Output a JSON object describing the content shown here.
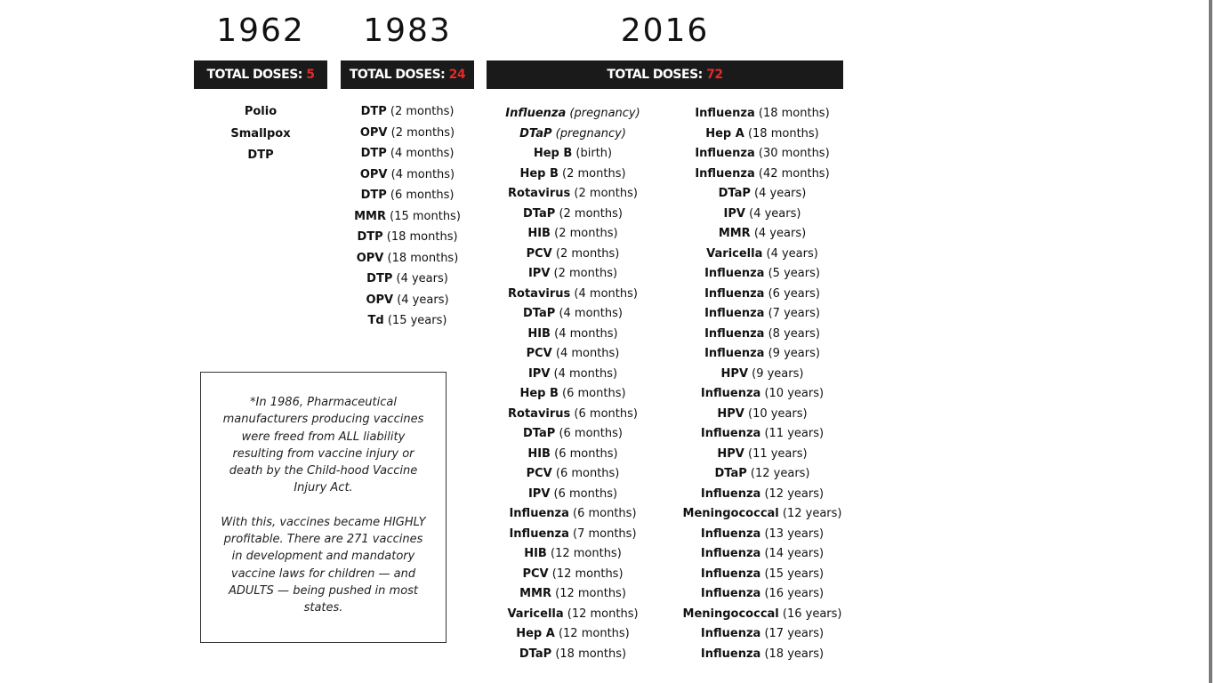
{
  "columns": {
    "c1962": {
      "year": "1962",
      "total_label": "TOTAL DOSES: ",
      "total_value": "5",
      "items": [
        {
          "name": "Polio",
          "detail": ""
        },
        {
          "name": "Smallpox",
          "detail": ""
        },
        {
          "name": "DTP",
          "detail": ""
        }
      ]
    },
    "c1983": {
      "year": "1983",
      "total_label": "TOTAL DOSES: ",
      "total_value": "24",
      "items": [
        {
          "name": "DTP",
          "detail": " (2 months)"
        },
        {
          "name": "OPV",
          "detail": " (2 months)"
        },
        {
          "name": "DTP",
          "detail": " (4 months)"
        },
        {
          "name": "OPV",
          "detail": " (4 months)"
        },
        {
          "name": "DTP",
          "detail": " (6 months)"
        },
        {
          "name": "MMR",
          "detail": " (15 months)"
        },
        {
          "name": "DTP",
          "detail": " (18 months)"
        },
        {
          "name": "OPV",
          "detail": " (18 months)"
        },
        {
          "name": "DTP",
          "detail": " (4 years)"
        },
        {
          "name": "OPV",
          "detail": " (4 years)"
        },
        {
          "name": "Td",
          "detail": " (15 years)"
        }
      ]
    },
    "c2016": {
      "year": "2016",
      "total_label": "TOTAL DOSES: ",
      "total_value": "72",
      "items_left": [
        {
          "name": "Influenza",
          "detail": " (pregnancy)",
          "italic": true
        },
        {
          "name": "DTaP",
          "detail": " (pregnancy)",
          "italic": true
        },
        {
          "name": "Hep B",
          "detail": " (birth)"
        },
        {
          "name": "Hep B",
          "detail": " (2 months)"
        },
        {
          "name": "Rotavirus",
          "detail": " (2 months)"
        },
        {
          "name": "DTaP",
          "detail": " (2 months)"
        },
        {
          "name": "HIB",
          "detail": " (2 months)"
        },
        {
          "name": "PCV",
          "detail": " (2 months)"
        },
        {
          "name": "IPV",
          "detail": " (2 months)"
        },
        {
          "name": "Rotavirus",
          "detail": " (4 months)"
        },
        {
          "name": "DTaP",
          "detail": " (4 months)"
        },
        {
          "name": "HIB",
          "detail": " (4 months)"
        },
        {
          "name": "PCV",
          "detail": " (4 months)"
        },
        {
          "name": "IPV",
          "detail": " (4 months)"
        },
        {
          "name": "Hep B",
          "detail": " (6 months)"
        },
        {
          "name": "Rotavirus",
          "detail": " (6 months)"
        },
        {
          "name": "DTaP",
          "detail": " (6 months)"
        },
        {
          "name": "HIB",
          "detail": " (6 months)"
        },
        {
          "name": "PCV",
          "detail": " (6 months)"
        },
        {
          "name": "IPV",
          "detail": " (6 months)"
        },
        {
          "name": "Influenza",
          "detail": " (6 months)"
        },
        {
          "name": "Influenza",
          "detail": " (7 months)"
        },
        {
          "name": "HIB",
          "detail": " (12 months)"
        },
        {
          "name": "PCV",
          "detail": " (12 months)"
        },
        {
          "name": "MMR",
          "detail": " (12 months)"
        },
        {
          "name": "Varicella",
          "detail": " (12 months)"
        },
        {
          "name": "Hep A",
          "detail": " (12 months)"
        },
        {
          "name": "DTaP",
          "detail": " (18 months)"
        }
      ],
      "items_right": [
        {
          "name": "Influenza",
          "detail": " (18 months)"
        },
        {
          "name": "Hep A",
          "detail": " (18 months)"
        },
        {
          "name": "Influenza",
          "detail": " (30 months)"
        },
        {
          "name": "Influenza",
          "detail": " (42 months)"
        },
        {
          "name": "DTaP",
          "detail": " (4 years)"
        },
        {
          "name": "IPV",
          "detail": " (4 years)"
        },
        {
          "name": "MMR",
          "detail": " (4 years)"
        },
        {
          "name": "Varicella",
          "detail": " (4 years)"
        },
        {
          "name": "Influenza",
          "detail": " (5 years)"
        },
        {
          "name": "Influenza",
          "detail": " (6 years)"
        },
        {
          "name": "Influenza",
          "detail": " (7 years)"
        },
        {
          "name": "Influenza",
          "detail": " (8 years)"
        },
        {
          "name": "Influenza",
          "detail": " (9 years)"
        },
        {
          "name": "HPV",
          "detail": " (9 years)"
        },
        {
          "name": "Influenza",
          "detail": " (10 years)"
        },
        {
          "name": "HPV",
          "detail": " (10 years)"
        },
        {
          "name": "Influenza",
          "detail": " (11 years)"
        },
        {
          "name": "HPV",
          "detail": " (11 years)"
        },
        {
          "name": "DTaP",
          "detail": " (12 years)"
        },
        {
          "name": "Influenza",
          "detail": " (12 years)"
        },
        {
          "name": "Meningococcal",
          "detail": " (12 years)"
        },
        {
          "name": "Influenza",
          "detail": " (13 years)"
        },
        {
          "name": "Influenza",
          "detail": " (14 years)"
        },
        {
          "name": "Influenza",
          "detail": " (15 years)"
        },
        {
          "name": "Influenza",
          "detail": " (16 years)"
        },
        {
          "name": "Meningococcal",
          "detail": " (16 years)"
        },
        {
          "name": "Influenza",
          "detail": " (17 years)"
        },
        {
          "name": "Influenza",
          "detail": " (18 years)"
        }
      ]
    }
  },
  "note": {
    "paragraph1": "*In 1986, Pharmaceutical manufacturers producing vaccines were freed from ALL liability resulting from vaccine injury or death by the Child-hood Vaccine Injury Act.",
    "paragraph2": "With this, vaccines became HIGHLY profitable. There are 271 vaccines in development and mandatory vaccine laws for children — and ADULTS — being pushed in most states."
  },
  "colors": {
    "bar_background": "#1a1a1a",
    "total_accent": "#e12a2a"
  }
}
